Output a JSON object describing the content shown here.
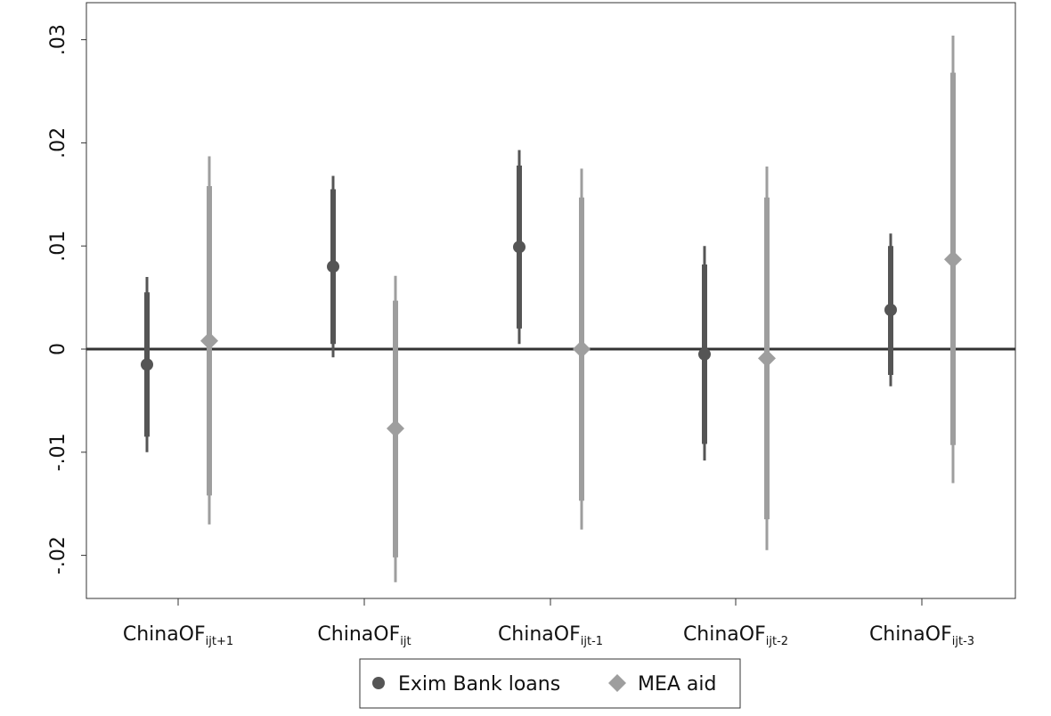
{
  "chart_data": {
    "type": "coefficient-plot",
    "title": "",
    "xlabel": "",
    "ylabel": "",
    "ylim": [
      -0.024,
      0.031
    ],
    "yticks": [
      {
        "value": 0.03,
        "label": ".03"
      },
      {
        "value": 0.02,
        "label": ".02"
      },
      {
        "value": 0.01,
        "label": ".01"
      },
      {
        "value": 0,
        "label": "0"
      },
      {
        "value": -0.01,
        "label": "-.01"
      },
      {
        "value": -0.02,
        "label": "-.02"
      }
    ],
    "reference_line": 0,
    "categories": [
      {
        "base": "ChinaOF",
        "sub": "ijt+1"
      },
      {
        "base": "ChinaOF",
        "sub": "ijt"
      },
      {
        "base": "ChinaOF",
        "sub": "ijt-1"
      },
      {
        "base": "ChinaOF",
        "sub": "ijt-2"
      },
      {
        "base": "ChinaOF",
        "sub": "ijt-3"
      }
    ],
    "series": [
      {
        "name": "Exim Bank loans",
        "marker": "circle",
        "color": "#555555",
        "points": [
          {
            "estimate": -0.0015,
            "ci90": [
              -0.0085,
              0.0055
            ],
            "ci95": [
              -0.01,
              0.007
            ]
          },
          {
            "estimate": 0.008,
            "ci90": [
              0.0005,
              0.0155
            ],
            "ci95": [
              -0.0008,
              0.0168
            ]
          },
          {
            "estimate": 0.0099,
            "ci90": [
              0.002,
              0.0178
            ],
            "ci95": [
              0.0005,
              0.0193
            ]
          },
          {
            "estimate": -0.0005,
            "ci90": [
              -0.0092,
              0.0082
            ],
            "ci95": [
              -0.0108,
              0.01
            ]
          },
          {
            "estimate": 0.0038,
            "ci90": [
              -0.0025,
              0.01
            ],
            "ci95": [
              -0.0036,
              0.0112
            ]
          }
        ]
      },
      {
        "name": "MEA aid",
        "marker": "diamond",
        "color": "#9e9e9e",
        "points": [
          {
            "estimate": 0.0008,
            "ci90": [
              -0.0142,
              0.0158
            ],
            "ci95": [
              -0.017,
              0.0187
            ]
          },
          {
            "estimate": -0.0077,
            "ci90": [
              -0.0202,
              0.0047
            ],
            "ci95": [
              -0.0226,
              0.0071
            ]
          },
          {
            "estimate": 0.0,
            "ci90": [
              -0.0147,
              0.0147
            ],
            "ci95": [
              -0.0175,
              0.0175
            ]
          },
          {
            "estimate": -0.0009,
            "ci90": [
              -0.0165,
              0.0147
            ],
            "ci95": [
              -0.0195,
              0.0177
            ]
          },
          {
            "estimate": 0.0087,
            "ci90": [
              -0.0093,
              0.0268
            ],
            "ci95": [
              -0.013,
              0.0304
            ]
          }
        ]
      }
    ],
    "legend": {
      "position": "bottom-center"
    }
  }
}
